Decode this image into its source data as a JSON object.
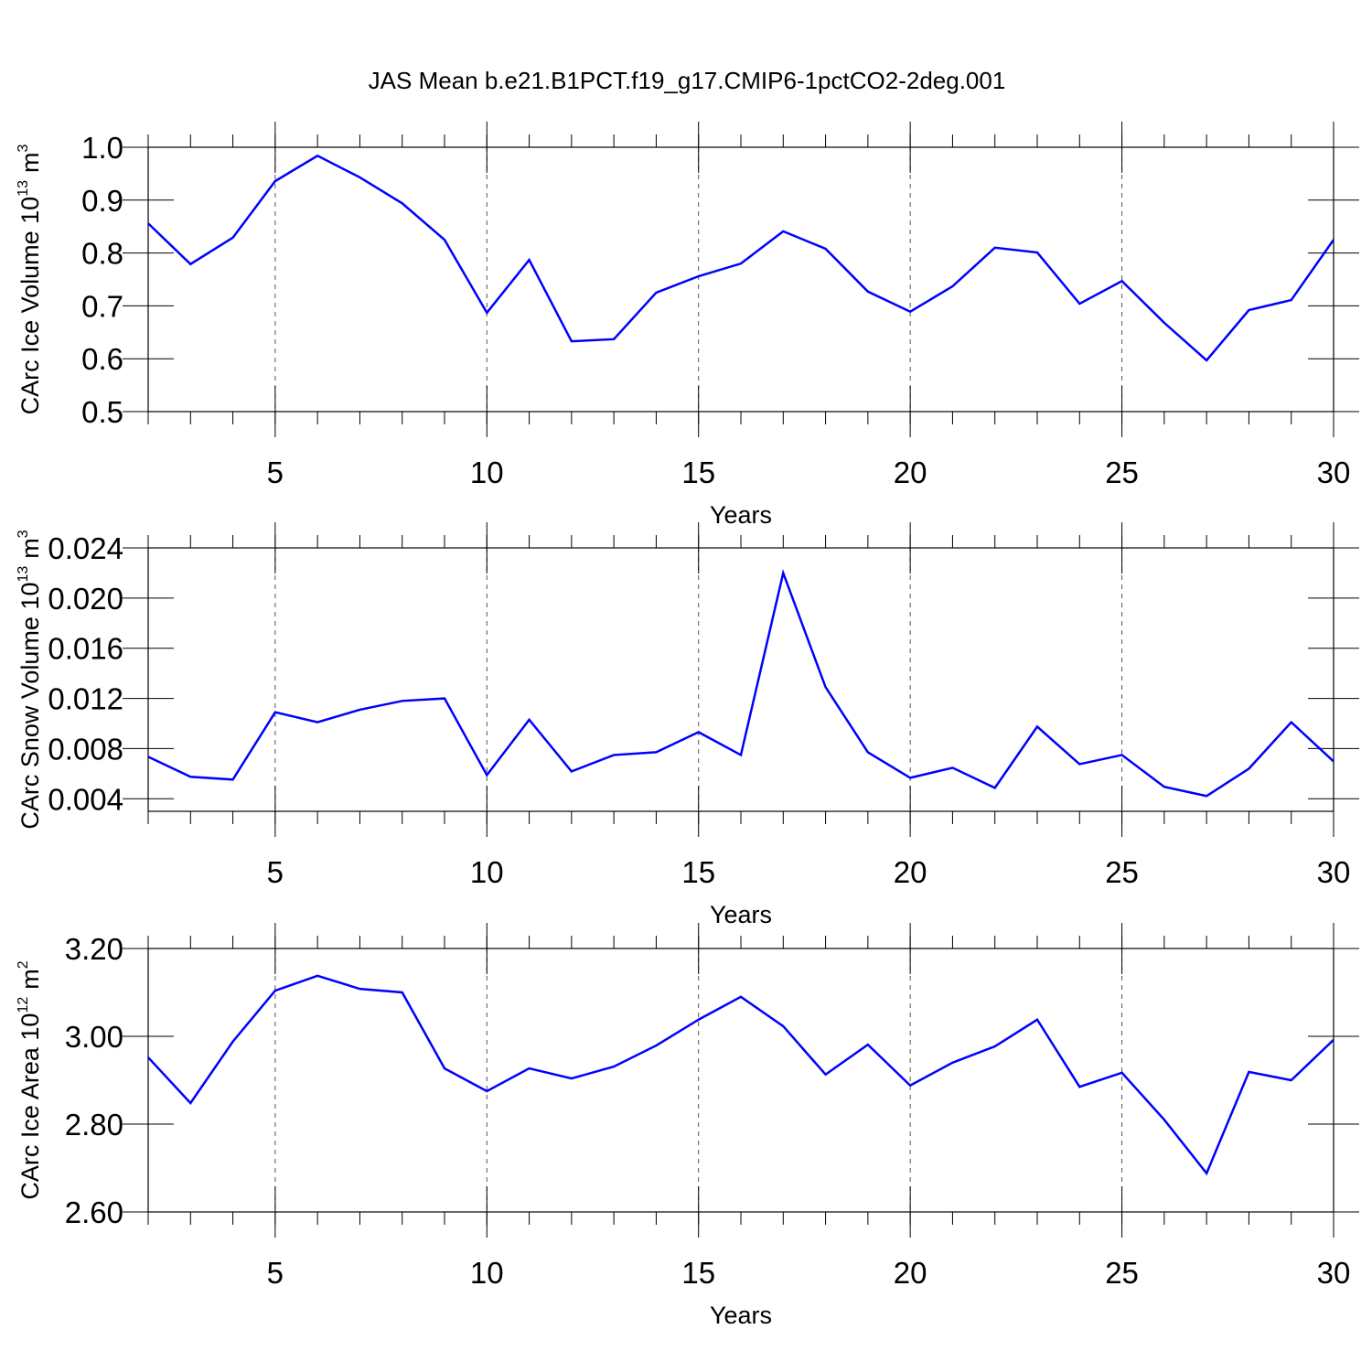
{
  "chart_data": [
    {
      "type": "line",
      "title": "JAS Mean b.e21.B1PCT.f19_g17.CMIP6-1pctCO2-2deg.001",
      "xlabel": "Years",
      "ylabel": "CArc Ice Volume 10",
      "ylabel_exp": "13",
      "ylabel_unit": "m",
      "ylabel_unit_exp": "3",
      "x": [
        2,
        3,
        4,
        5,
        6,
        7,
        8,
        9,
        10,
        11,
        12,
        13,
        14,
        15,
        16,
        17,
        18,
        19,
        20,
        21,
        22,
        23,
        24,
        25,
        26,
        27,
        28,
        29,
        30
      ],
      "values": [
        0.856,
        0.779,
        0.829,
        0.936,
        0.984,
        0.943,
        0.894,
        0.825,
        0.687,
        0.787,
        0.633,
        0.637,
        0.725,
        0.756,
        0.78,
        0.841,
        0.808,
        0.727,
        0.689,
        0.737,
        0.81,
        0.801,
        0.704,
        0.747,
        0.668,
        0.597,
        0.692,
        0.711,
        0.825
      ],
      "color": "#0000ff",
      "xlim": [
        2,
        30
      ],
      "xticks": [
        5,
        10,
        15,
        20,
        25,
        30
      ],
      "grid": "x-dashed",
      "ylim": [
        0.5,
        1.0
      ],
      "yticks": [
        0.5,
        0.6,
        0.7,
        0.8,
        0.9,
        {
          "value": 1.0,
          "label": "1.0"
        }
      ]
    },
    {
      "type": "line",
      "xlabel": "Years",
      "ylabel": "CArc Snow Volume 10",
      "ylabel_exp": "13",
      "ylabel_unit": "m",
      "ylabel_unit_exp": "3",
      "x": [
        2,
        3,
        4,
        5,
        6,
        7,
        8,
        9,
        10,
        11,
        12,
        13,
        14,
        15,
        16,
        17,
        18,
        19,
        20,
        21,
        22,
        23,
        24,
        25,
        26,
        27,
        28,
        29,
        30
      ],
      "values": [
        0.00735,
        0.00575,
        0.00553,
        0.0109,
        0.0101,
        0.0111,
        0.0118,
        0.012,
        0.00589,
        0.0103,
        0.00618,
        0.00749,
        0.00771,
        0.00931,
        0.00749,
        0.022,
        0.0129,
        0.00771,
        0.00567,
        0.00647,
        0.00487,
        0.00975,
        0.00676,
        0.00749,
        0.00495,
        0.00422,
        0.0064,
        0.0101,
        0.00698
      ],
      "color": "#0000ff",
      "xlim": [
        2,
        30
      ],
      "xticks": [
        5,
        10,
        15,
        20,
        25,
        30
      ],
      "grid": "x-dashed",
      "ylim": [
        0.003,
        0.024
      ],
      "yticks": [
        0.004,
        0.008,
        0.012,
        0.016,
        {
          "value": 0.02,
          "label": "0.020"
        },
        0.024
      ]
    },
    {
      "type": "line",
      "xlabel": "Years",
      "ylabel": "CArc Ice Area 10",
      "ylabel_exp": "12",
      "ylabel_unit": "m",
      "ylabel_unit_exp": "2",
      "x": [
        2,
        3,
        4,
        5,
        6,
        7,
        8,
        9,
        10,
        11,
        12,
        13,
        14,
        15,
        16,
        17,
        18,
        19,
        20,
        21,
        22,
        23,
        24,
        25,
        26,
        27,
        28,
        29,
        30
      ],
      "values": [
        2.952,
        2.848,
        2.988,
        3.104,
        3.138,
        3.108,
        3.1,
        2.927,
        2.875,
        2.927,
        2.904,
        2.931,
        2.979,
        3.038,
        3.09,
        3.023,
        2.913,
        2.981,
        2.888,
        2.94,
        2.977,
        3.038,
        2.885,
        2.917,
        2.81,
        2.688,
        2.919,
        2.9,
        2.992
      ],
      "color": "#0000ff",
      "xlim": [
        2,
        30
      ],
      "xticks": [
        5,
        10,
        15,
        20,
        25,
        30
      ],
      "grid": "x-dashed",
      "ylim": [
        2.6,
        3.2
      ],
      "yticks": [
        {
          "value": 2.6,
          "label": "2.60"
        },
        {
          "value": 2.8,
          "label": "2.80"
        },
        {
          "value": 3.0,
          "label": "3.00"
        },
        {
          "value": 3.2,
          "label": "3.20"
        }
      ]
    }
  ]
}
